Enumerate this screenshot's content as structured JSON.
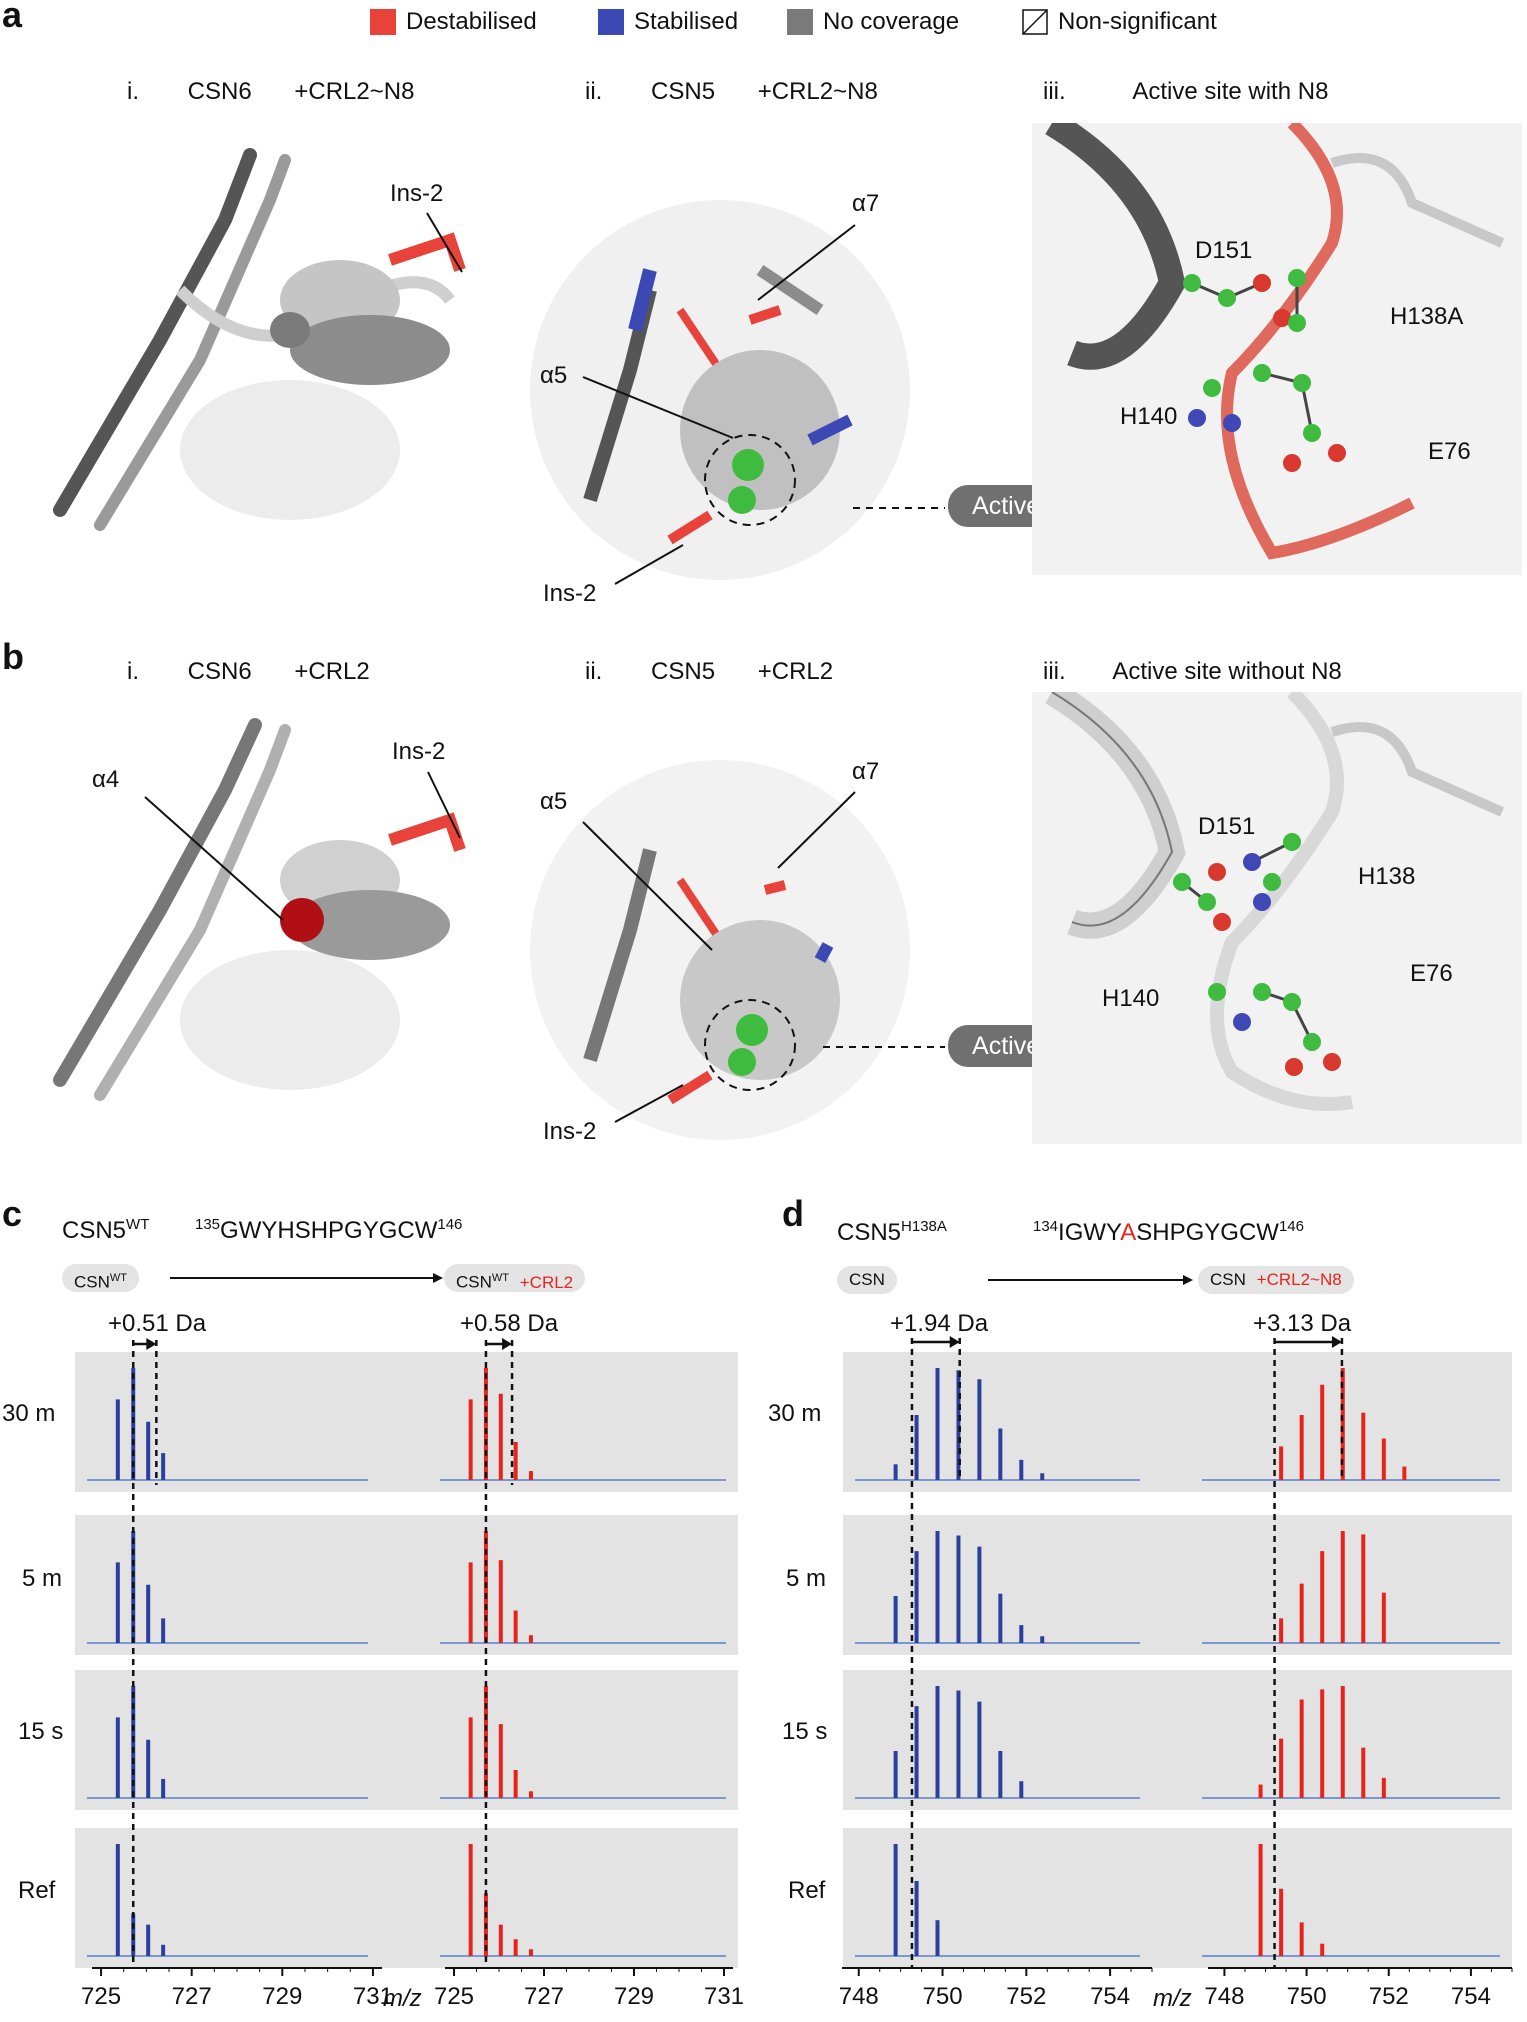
{
  "legend": [
    {
      "label": "Destabilised",
      "color": "#e8433a"
    },
    {
      "label": "Stabilised",
      "color": "#3c49b5"
    },
    {
      "label": "No coverage",
      "color": "#7a7a7a"
    },
    {
      "label": "Non-significant",
      "color": "#ffffff"
    }
  ],
  "panel_a": {
    "letter": "a",
    "i": {
      "num": "i.",
      "protein": "CSN6",
      "cond": "+CRL2~N8",
      "labels": [
        "Ins-2"
      ]
    },
    "ii": {
      "num": "ii.",
      "protein": "CSN5",
      "cond": "+CRL2~N8",
      "labels": [
        "α7",
        "α5",
        "Ins-2"
      ]
    },
    "iii": {
      "num": "iii.",
      "title": "Active site with N8",
      "residues": [
        "D151",
        "H138A",
        "H140",
        "E76"
      ]
    },
    "active_site": "Active site"
  },
  "panel_b": {
    "letter": "b",
    "i": {
      "num": "i.",
      "protein": "CSN6",
      "cond": "+CRL2",
      "labels": [
        "α4",
        "Ins-2"
      ]
    },
    "ii": {
      "num": "ii.",
      "protein": "CSN5",
      "cond": "+CRL2",
      "labels": [
        "α7",
        "α5",
        "Ins-2"
      ]
    },
    "iii": {
      "num": "iii.",
      "title": "Active site without N8",
      "residues": [
        "D151",
        "H138",
        "H140",
        "E76"
      ]
    },
    "active_site": "Active site"
  },
  "panel_c": {
    "letter": "c",
    "protein": "CSN5",
    "protein_sup": "WT",
    "peptide_start": "135",
    "peptide": "GWYHSHPGYGCW",
    "peptide_end": "146",
    "pill_left": "CSN",
    "pill_left_sup": "WT",
    "pill_right": "CSN",
    "pill_right_sup": "WT",
    "pill_right_extra": "+CRL2",
    "shift_left": "+0.51 Da",
    "shift_right": "+0.58 Da",
    "x_ticks": [
      "725",
      "727",
      "729",
      "731",
      "725",
      "727",
      "729",
      "731"
    ]
  },
  "panel_d": {
    "letter": "d",
    "protein": "CSN5",
    "protein_sup": "H138A",
    "peptide_start": "134",
    "peptide_pre": "IGWY",
    "peptide_mut": "A",
    "peptide_post": "SHPGYGCW",
    "peptide_end": "146",
    "pill_left": "CSN",
    "pill_right": "CSN",
    "pill_right_extra": "+CRL2~N8",
    "shift_left": "+1.94 Da",
    "shift_right": "+3.13 Da",
    "x_ticks": [
      "748",
      "750",
      "752",
      "754",
      "748",
      "750",
      "752",
      "754"
    ]
  },
  "time_rows": [
    "30 m",
    "5 m",
    "15 s",
    "Ref"
  ],
  "x_axis_label": "m/z",
  "chart_data": [
    {
      "type": "bar",
      "panel": "c-left (CSN5 WT, CSN)",
      "xlim": [
        724.8,
        731.2
      ],
      "x_ticks": [
        725,
        727,
        729,
        731
      ],
      "color": "#2b3f9e",
      "rows": {
        "Ref": {
          "x": [
            725.37,
            725.71,
            726.04,
            726.37
          ],
          "y": [
            1.0,
            0.38,
            0.28,
            0.1
          ]
        },
        "15 s": {
          "x": [
            725.37,
            725.71,
            726.04,
            726.37
          ],
          "y": [
            0.72,
            1.0,
            0.52,
            0.17
          ]
        },
        "5 m": {
          "x": [
            725.37,
            725.71,
            726.04,
            726.37
          ],
          "y": [
            0.72,
            1.0,
            0.52,
            0.22
          ]
        },
        "30 m": {
          "x": [
            725.37,
            725.71,
            726.04,
            726.37
          ],
          "y": [
            0.72,
            1.0,
            0.52,
            0.24
          ]
        }
      }
    },
    {
      "type": "bar",
      "panel": "c-right (CSN5 WT, CSN +CRL2)",
      "xlim": [
        724.8,
        731.2
      ],
      "x_ticks": [
        725,
        727,
        729,
        731
      ],
      "color": "#e8231c",
      "rows": {
        "Ref": {
          "x": [
            725.37,
            725.71,
            726.04,
            726.37,
            726.71
          ],
          "y": [
            1.0,
            0.56,
            0.28,
            0.15,
            0.06
          ]
        },
        "15 s": {
          "x": [
            725.37,
            725.71,
            726.04,
            726.37,
            726.71
          ],
          "y": [
            0.72,
            1.0,
            0.66,
            0.25,
            0.06
          ]
        },
        "5 m": {
          "x": [
            725.37,
            725.71,
            726.04,
            726.37,
            726.71
          ],
          "y": [
            0.72,
            1.0,
            0.74,
            0.29,
            0.07
          ]
        },
        "30 m": {
          "x": [
            725.37,
            725.71,
            726.04,
            726.37,
            726.71
          ],
          "y": [
            0.72,
            1.0,
            0.77,
            0.34,
            0.08
          ]
        }
      }
    },
    {
      "type": "bar",
      "panel": "d-left (CSN5 H138A, CSN)",
      "xlim": [
        747.6,
        755.0
      ],
      "x_ticks": [
        748,
        750,
        752,
        754
      ],
      "color": "#2b3f9e",
      "rows": {
        "Ref": {
          "x": [
            748.88,
            749.38,
            749.88
          ],
          "y": [
            1.0,
            0.67,
            0.32
          ]
        },
        "15 s": {
          "x": [
            748.88,
            749.38,
            749.88,
            750.38,
            750.88,
            751.38,
            751.88
          ],
          "y": [
            0.42,
            0.82,
            1.0,
            0.96,
            0.86,
            0.42,
            0.15
          ]
        },
        "5 m": {
          "x": [
            748.88,
            749.38,
            749.88,
            750.38,
            750.88,
            751.38,
            751.88,
            752.38
          ],
          "y": [
            0.42,
            0.82,
            1.0,
            0.96,
            0.86,
            0.44,
            0.16,
            0.06
          ]
        },
        "30 m": {
          "x": [
            748.88,
            749.38,
            749.88,
            750.38,
            750.88,
            751.38,
            751.88,
            752.38
          ],
          "y": [
            0.14,
            0.58,
            1.0,
            0.98,
            0.9,
            0.46,
            0.18,
            0.06
          ]
        }
      }
    },
    {
      "type": "bar",
      "panel": "d-right (CSN5 H138A, CSN +CRL2~N8)",
      "xlim": [
        747.6,
        755.0
      ],
      "x_ticks": [
        748,
        750,
        752,
        754
      ],
      "color": "#e8231c",
      "rows": {
        "Ref": {
          "x": [
            748.88,
            749.38,
            749.88,
            750.38
          ],
          "y": [
            1.0,
            0.6,
            0.3,
            0.11
          ]
        },
        "15 s": {
          "x": [
            748.88,
            749.38,
            749.88,
            750.38,
            750.88,
            751.38,
            751.88
          ],
          "y": [
            0.12,
            0.53,
            0.88,
            0.97,
            1.0,
            0.45,
            0.18
          ]
        },
        "5 m": {
          "x": [
            749.38,
            749.88,
            750.38,
            750.88,
            751.38,
            751.88
          ],
          "y": [
            0.22,
            0.53,
            0.82,
            1.0,
            0.97,
            0.45
          ]
        },
        "30 m": {
          "x": [
            749.38,
            749.88,
            750.38,
            750.88,
            751.38,
            751.88,
            752.38
          ],
          "y": [
            0.3,
            0.58,
            0.85,
            1.0,
            0.6,
            0.37,
            0.12
          ]
        }
      }
    }
  ]
}
